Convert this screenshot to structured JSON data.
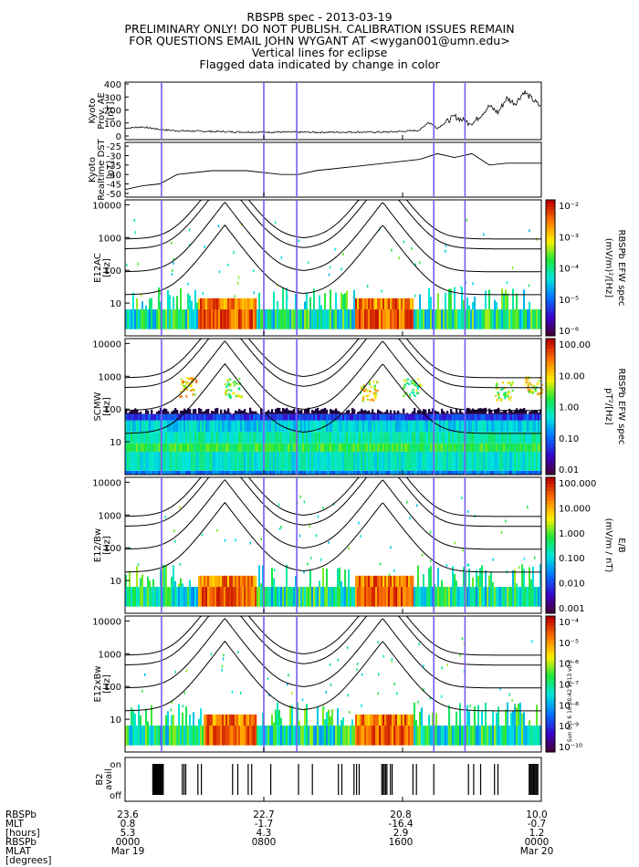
{
  "header": {
    "lines": [
      "RBSPB spec - 2013-03-19",
      "PRELIMINARY ONLY! DO NOT PUBLISH. CALIBRATION ISSUES REMAIN",
      "FOR QUESTIONS EMAIL JOHN WYGANT AT <wygan001@umn.edu>",
      "Vertical lines for eclipse",
      "Flagged data indicated by change in color"
    ]
  },
  "eclipse_lines_hours": [
    2.1,
    8.0,
    9.9,
    17.8,
    19.6
  ],
  "panels": [
    {
      "id": "ae",
      "ylabel": [
        "Kyoto",
        "Prov. AE",
        "[nT]"
      ],
      "yticks": [
        "400",
        "300",
        "200",
        "100",
        "0"
      ],
      "ylim": [
        0,
        400
      ]
    },
    {
      "id": "dst",
      "ylabel": [
        "Kyoto",
        "Realtime DST",
        "[nT]"
      ],
      "yticks": [
        "-25",
        "-30",
        "-35",
        "-40",
        "-45",
        "-50"
      ],
      "ylim": [
        -52,
        -23
      ]
    },
    {
      "id": "e12ac",
      "ylabel": [
        "E12AC",
        "[Hz]"
      ],
      "yticks": [
        "10000",
        "1000",
        "100",
        "10"
      ],
      "cbar_title": [
        "(mV/m)²/[Hz]",
        "RBSPb EFW spec"
      ],
      "cbar_ticks": [
        "10⁻²",
        "10⁻³",
        "10⁻⁴",
        "10⁻⁵",
        "10⁻⁶"
      ]
    },
    {
      "id": "scmw",
      "ylabel": [
        "SCMW",
        "[Hz]"
      ],
      "yticks": [
        "10000",
        "1000",
        "100",
        "10"
      ],
      "cbar_title": [
        "pT²/[Hz]",
        "RBSPb EFW spec"
      ],
      "cbar_ticks": [
        "100.00",
        "10.00",
        "1.00",
        "0.10",
        "0.01"
      ]
    },
    {
      "id": "e12bw",
      "ylabel": [
        "E12/Bw",
        "[Hz]"
      ],
      "yticks": [
        "10000",
        "1000",
        "100",
        "10"
      ],
      "cbar_title": [
        "(mV/m / nT)",
        "E/B"
      ],
      "cbar_ticks": [
        "100.000",
        "10.000",
        "1.000",
        "0.100",
        "0.010",
        "0.001"
      ]
    },
    {
      "id": "e12xbw",
      "ylabel": [
        "E12xBw",
        "[Hz]"
      ],
      "yticks": [
        "10000",
        "1000",
        "100",
        "10"
      ],
      "cbar_title": [],
      "cbar_ticks": [
        "10⁻⁴",
        "10⁻⁵",
        "10⁻⁶",
        "10⁻⁷",
        "10⁻⁸",
        "10⁻⁹",
        "10⁻¹⁰"
      ]
    },
    {
      "id": "b2",
      "ylabel": [
        "B2",
        "avail"
      ],
      "yticks": [
        "on",
        "off"
      ]
    }
  ],
  "side_stamp": "Sun Oct 6 16:00:42 2013 v0.2",
  "footer": {
    "row_labels": [
      "RBSPb",
      "MLT",
      "[hours]",
      "RBSPb",
      "MLAT",
      "[degrees]"
    ],
    "columns": [
      {
        "mlt": "23.6",
        "mlat": "0.8",
        "lshell": "5.3",
        "hhmm": "0000",
        "date": "Mar 19"
      },
      {
        "mlt": "22.7",
        "mlat": "-1.7",
        "lshell": "4.3",
        "hhmm": "0800",
        "date": ""
      },
      {
        "mlt": "20.8",
        "mlat": "-16.4",
        "lshell": "2.9",
        "hhmm": "1600",
        "date": ""
      },
      {
        "mlt": "10.0",
        "mlat": "-0.7",
        "lshell": "1.2",
        "hhmm": "0000",
        "date": "Mar 20"
      }
    ]
  },
  "chart_data": [
    {
      "type": "line",
      "title": "",
      "ylabel": "Kyoto Prov. AE [nT]",
      "ylim": [
        0,
        400
      ],
      "x_hours": [
        0,
        1,
        2,
        3,
        5,
        7,
        9,
        11,
        13,
        15,
        16,
        17,
        17.5,
        18,
        19,
        20,
        21,
        21.5,
        22,
        22.5,
        23,
        23.5,
        24
      ],
      "values": [
        60,
        70,
        50,
        40,
        35,
        30,
        30,
        28,
        30,
        30,
        35,
        45,
        110,
        60,
        150,
        90,
        230,
        180,
        290,
        250,
        340,
        280,
        220
      ]
    },
    {
      "type": "line",
      "ylabel": "Kyoto Realtime DST [nT]",
      "ylim": [
        -52,
        -23
      ],
      "x_hours": [
        0,
        1,
        2,
        3,
        5,
        7,
        9,
        10,
        11,
        13,
        15,
        17,
        18,
        19,
        20,
        21,
        22,
        23,
        24
      ],
      "values": [
        -48,
        -46,
        -45,
        -40,
        -38,
        -38,
        -40,
        -40,
        -38,
        -36,
        -34,
        -32,
        -29,
        -31,
        -29,
        -35,
        -34,
        -34,
        -34
      ]
    },
    {
      "type": "heatmap",
      "ylabel": "E12AC [Hz]",
      "yscale": "log",
      "ylim": [
        1,
        10000
      ],
      "colorbar": "(mV/m)²/[Hz]",
      "clim": [
        "1e-6",
        "1e-2"
      ]
    },
    {
      "type": "heatmap",
      "ylabel": "SCMW [Hz]",
      "yscale": "log",
      "ylim": [
        1,
        10000
      ],
      "colorbar": "pT²/[Hz]",
      "clim": [
        0.01,
        100
      ]
    },
    {
      "type": "heatmap",
      "ylabel": "E12/Bw [Hz]",
      "yscale": "log",
      "ylim": [
        1,
        10000
      ],
      "colorbar": "(mV/m / nT)",
      "clim": [
        0.001,
        100
      ]
    },
    {
      "type": "heatmap",
      "ylabel": "E12xBw [Hz]",
      "yscale": "log",
      "ylim": [
        1,
        10000
      ],
      "clim": [
        "1e-10",
        "1e-4"
      ]
    },
    {
      "type": "bar",
      "ylabel": "B2 avail",
      "categories": [
        "off",
        "on"
      ]
    }
  ]
}
